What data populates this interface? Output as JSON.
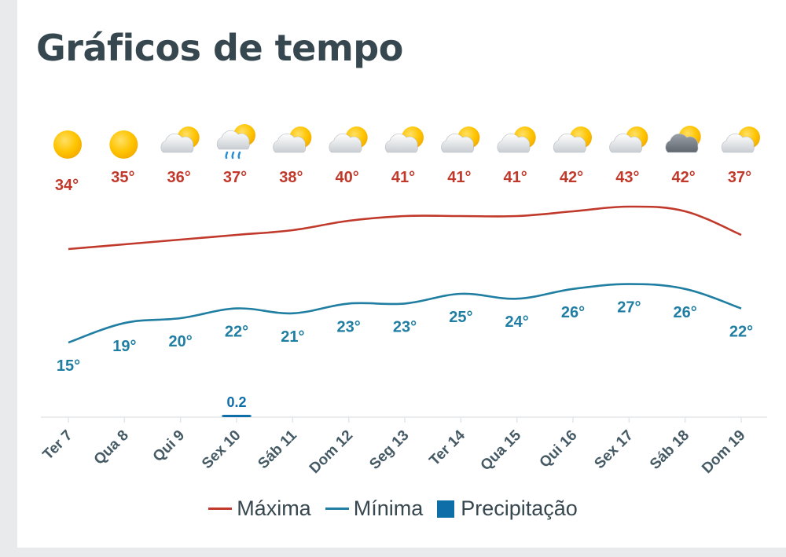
{
  "header": {
    "title": "Gráficos de tempo"
  },
  "colors": {
    "max": "#c0392b",
    "min": "#1f7ea1",
    "precip": "#0e6ea8",
    "axis": "#e3e6e8",
    "tick_text": "#455a64"
  },
  "legend": {
    "max_label": "Máxima",
    "min_label": "Mínima",
    "precip_label": "Precipitação"
  },
  "icons": [
    "sun-icon",
    "sun-icon",
    "partly-cloudy-icon",
    "rain-cloud-icon",
    "partly-cloudy-icon",
    "partly-cloudy-icon",
    "partly-cloudy-icon",
    "partly-cloudy-icon",
    "partly-cloudy-icon",
    "partly-cloudy-icon",
    "partly-cloudy-icon",
    "dark-cloud-sun-icon",
    "partly-cloudy-icon"
  ],
  "chart_data": {
    "type": "line",
    "categories": [
      "Ter 7",
      "Qua 8",
      "Qui 9",
      "Sex 10",
      "Sáb 11",
      "Dom 12",
      "Seg 13",
      "Ter 14",
      "Qua 15",
      "Qui 16",
      "Sex 17",
      "Sáb 18",
      "Dom 19"
    ],
    "series": [
      {
        "name": "Máxima",
        "values": [
          34,
          35,
          36,
          37,
          38,
          40,
          41,
          41,
          41,
          42,
          43,
          42,
          37
        ],
        "labels": [
          "34°",
          "35°",
          "36°",
          "37°",
          "38°",
          "40°",
          "41°",
          "41°",
          "41°",
          "42°",
          "43°",
          "42°",
          "37°"
        ]
      },
      {
        "name": "Mínima",
        "values": [
          15,
          19,
          20,
          22,
          21,
          23,
          23,
          25,
          24,
          26,
          27,
          26,
          22
        ],
        "labels": [
          "15°",
          "19°",
          "20°",
          "22°",
          "21°",
          "23°",
          "23°",
          "25°",
          "24°",
          "26°",
          "27°",
          "26°",
          "22°"
        ]
      },
      {
        "name": "Precipitação",
        "values": [
          0,
          0,
          0,
          0.2,
          0,
          0,
          0,
          0,
          0,
          0,
          0,
          0,
          0
        ],
        "labels": [
          "",
          "",
          "",
          "0.2",
          "",
          "",
          "",
          "",
          "",
          "",
          "",
          "",
          ""
        ]
      }
    ]
  }
}
